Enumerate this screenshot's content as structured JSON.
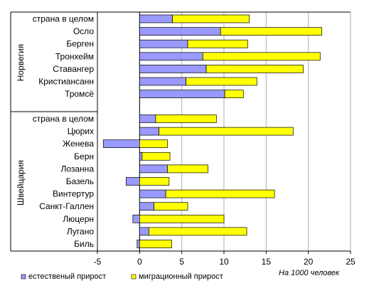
{
  "chart_data": {
    "type": "bar",
    "orientation": "horizontal",
    "stacked": true,
    "groups": [
      {
        "name": "Норвегия",
        "categories": [
          "страна в целом",
          "Осло",
          "Берген",
          "Тронхейм",
          "Ставангер",
          "Кристиансанн",
          "Тромсё"
        ]
      },
      {
        "name": "Швейцария",
        "categories": [
          "страна в целом",
          "Цюрих",
          "Женева",
          "Берн",
          "Лозанна",
          "Базель",
          "Винтертур",
          "Санкт-Галлен",
          "Люцерн",
          "Лугано",
          "Биль"
        ]
      }
    ],
    "series": [
      {
        "name": "естественый прирост",
        "color": "#9999ff",
        "values": [
          3.9,
          9.6,
          5.7,
          7.5,
          7.9,
          5.5,
          10.1,
          1.9,
          2.3,
          -4.3,
          0.3,
          3.3,
          -1.6,
          3.1,
          1.7,
          -0.8,
          1.1,
          -0.3
        ]
      },
      {
        "name": "миграционный прирост",
        "color": "#ffff00",
        "values": [
          9.1,
          12.0,
          7.1,
          13.9,
          11.5,
          8.4,
          2.2,
          7.2,
          15.9,
          3.3,
          3.3,
          4.8,
          3.5,
          12.9,
          4.0,
          10.0,
          11.6,
          3.8
        ]
      }
    ],
    "xlim": [
      -5,
      25
    ],
    "xticks": [
      "-5",
      "0",
      "5",
      "10",
      "15",
      "20",
      "25"
    ],
    "xlabel": "На 1000 человек",
    "grid": "vertical",
    "legend": "bottom-left"
  }
}
